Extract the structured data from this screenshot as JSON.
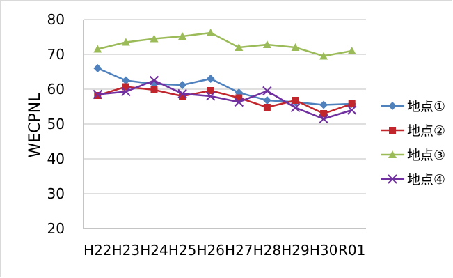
{
  "chart_data": {
    "type": "line",
    "title": "",
    "xlabel": "",
    "ylabel": "WECPNL",
    "ylim": [
      20,
      80
    ],
    "yticks": [
      20,
      30,
      40,
      50,
      60,
      70,
      80
    ],
    "grid": true,
    "legend_position": "right",
    "categories": [
      "H22",
      "H23",
      "H24",
      "H25",
      "H26",
      "H27",
      "H28",
      "H29",
      "H30",
      "R01"
    ],
    "series": [
      {
        "name": "地点①",
        "color": "#4f81bd",
        "marker": "diamond",
        "values": [
          66.0,
          62.5,
          61.5,
          61.2,
          63.0,
          59.0,
          56.8,
          56.3,
          55.5,
          55.8
        ]
      },
      {
        "name": "地点②",
        "color": "#c0262c",
        "marker": "square",
        "values": [
          58.2,
          60.7,
          59.8,
          58.0,
          59.6,
          57.5,
          54.8,
          56.8,
          53.0,
          55.8
        ]
      },
      {
        "name": "地点③",
        "color": "#9bbb59",
        "marker": "triangle",
        "values": [
          71.5,
          73.5,
          74.5,
          75.2,
          76.2,
          72.0,
          72.8,
          72.0,
          69.5,
          71.0
        ]
      },
      {
        "name": "地点④",
        "color": "#7030a0",
        "marker": "x",
        "values": [
          58.5,
          59.3,
          62.5,
          58.7,
          58.0,
          56.3,
          59.5,
          54.7,
          51.5,
          54.0
        ]
      }
    ]
  }
}
